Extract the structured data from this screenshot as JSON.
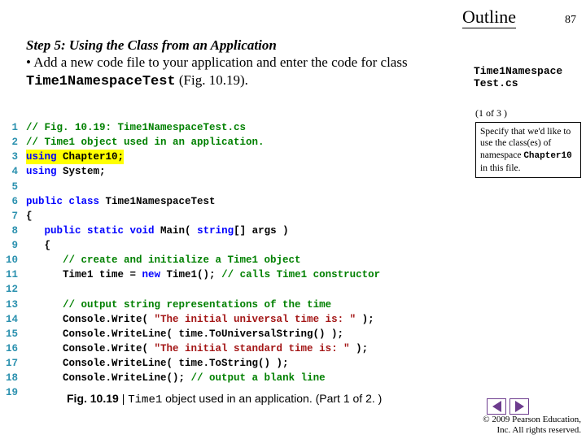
{
  "header": {
    "outline": "Outline",
    "page": "87"
  },
  "step": {
    "title": "Step 5: Using the Class from an Application",
    "bullet_prefix": "• Add a new code file to your application and enter the code for class ",
    "class_name": "Time1NamespaceTest",
    "bullet_suffix": " (Fig. 10.19)."
  },
  "sideLabel": {
    "line1": "Time1Namespace",
    "line2": "Test.cs"
  },
  "partIndicator": "(1 of 3 )",
  "note": {
    "pre": "Specify that we'd like to use the class(es) of namespace ",
    "ns": "Chapter10",
    "post": " in this file."
  },
  "code": {
    "lines": [
      {
        "n": "1",
        "seg": [
          [
            "c-comment",
            "// Fig. 10.19: Time1NamespaceTest.cs"
          ]
        ]
      },
      {
        "n": "2",
        "seg": [
          [
            "c-comment",
            "// Time1 object used in an application."
          ]
        ]
      },
      {
        "n": "3",
        "seg": [
          [
            "c-kw hl",
            "using"
          ],
          [
            "c-plain hl",
            " Chapter10;"
          ]
        ]
      },
      {
        "n": "4",
        "seg": [
          [
            "c-kw",
            "using"
          ],
          [
            "c-plain",
            " System;"
          ]
        ]
      },
      {
        "n": "5",
        "seg": []
      },
      {
        "n": "6",
        "seg": [
          [
            "c-kw",
            "public class"
          ],
          [
            "c-plain",
            " Time1NamespaceTest"
          ]
        ]
      },
      {
        "n": "7",
        "seg": [
          [
            "c-plain",
            "{"
          ]
        ]
      },
      {
        "n": "8",
        "seg": [
          [
            "c-plain",
            "   "
          ],
          [
            "c-kw",
            "public static void"
          ],
          [
            "c-plain",
            " Main( "
          ],
          [
            "c-kw",
            "string"
          ],
          [
            "c-plain",
            "[] args )"
          ]
        ]
      },
      {
        "n": "9",
        "seg": [
          [
            "c-plain",
            "   {"
          ]
        ]
      },
      {
        "n": "10",
        "seg": [
          [
            "c-plain",
            "      "
          ],
          [
            "c-comment",
            "// create and initialize a Time1 object"
          ]
        ]
      },
      {
        "n": "11",
        "seg": [
          [
            "c-plain",
            "      Time1 time = "
          ],
          [
            "c-kw",
            "new"
          ],
          [
            "c-plain",
            " Time1(); "
          ],
          [
            "c-comment",
            "// calls Time1 constructor"
          ]
        ]
      },
      {
        "n": "12",
        "seg": []
      },
      {
        "n": "13",
        "seg": [
          [
            "c-plain",
            "      "
          ],
          [
            "c-comment",
            "// output string representations of the time"
          ]
        ]
      },
      {
        "n": "14",
        "seg": [
          [
            "c-plain",
            "      Console.Write( "
          ],
          [
            "c-str",
            "\"The initial universal time is: \""
          ],
          [
            "c-plain",
            " );"
          ]
        ]
      },
      {
        "n": "15",
        "seg": [
          [
            "c-plain",
            "      Console.WriteLine( time.ToUniversalString() );"
          ]
        ]
      },
      {
        "n": "16",
        "seg": [
          [
            "c-plain",
            "      Console.Write( "
          ],
          [
            "c-str",
            "\"The initial standard time is: \""
          ],
          [
            "c-plain",
            " );"
          ]
        ]
      },
      {
        "n": "17",
        "seg": [
          [
            "c-plain",
            "      Console.WriteLine( time.ToString() );"
          ]
        ]
      },
      {
        "n": "18",
        "seg": [
          [
            "c-plain",
            "      Console.WriteLine(); "
          ],
          [
            "c-comment",
            "// output a blank line"
          ]
        ]
      },
      {
        "n": "19",
        "seg": []
      }
    ]
  },
  "caption": {
    "fig": "Fig. 10.19",
    "sep": " | ",
    "code": "Time1",
    "rest": " object used in an application. (Part 1 of 2. )"
  },
  "copyright": {
    "l1": "© 2009 Pearson Education,",
    "l2": "Inc. All rights reserved."
  }
}
